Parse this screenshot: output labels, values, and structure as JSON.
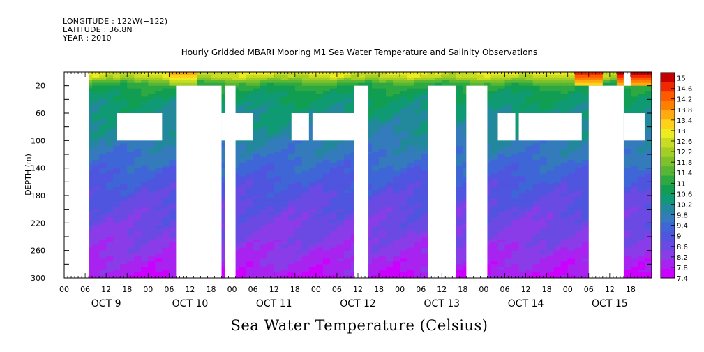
{
  "meta": {
    "longitude": "LONGITUDE : 122W(−122)",
    "latitude": "LATITUDE : 36.8N",
    "year": "YEAR : 2010"
  },
  "chart_data": {
    "type": "heatmap",
    "title": "Hourly Gridded MBARI Mooring M1 Sea Water Temperature and Salinity Observations",
    "xlabel": "Sea Water Temperature (Celsius)",
    "ylabel": "DEPTH (m)",
    "y_range": [
      0,
      300
    ],
    "y_reversed": true,
    "y_ticks": [
      20,
      60,
      100,
      140,
      180,
      220,
      260,
      300
    ],
    "x_range_hours": [
      0,
      168
    ],
    "x_hour_ticks": [
      "00",
      "06",
      "12",
      "18",
      "00",
      "06",
      "12",
      "18",
      "00",
      "06",
      "12",
      "18",
      "00",
      "06",
      "12",
      "18",
      "00",
      "06",
      "12",
      "18",
      "00",
      "06",
      "12",
      "18",
      "00",
      "06",
      "12",
      "18"
    ],
    "x_day_labels": [
      "OCT  9",
      "OCT 10",
      "OCT 11",
      "OCT 12",
      "OCT 13",
      "OCT 14",
      "OCT 15"
    ],
    "colorbar": {
      "levels": [
        "15",
        "14.6",
        "14.2",
        "13.8",
        "13.4",
        "13",
        "12.6",
        "12.2",
        "11.8",
        "11.4",
        "11",
        "10.6",
        "10.2",
        "9.8",
        "9.4",
        "9",
        "8.6",
        "8.2",
        "7.8",
        "7.4"
      ],
      "min": 7.4,
      "max": 15.2
    },
    "temperature_profile": {
      "depths_m": [
        0,
        8,
        14,
        20,
        35,
        60,
        90,
        120,
        160,
        200,
        240,
        270,
        290,
        300
      ],
      "values_c": [
        12.8,
        12.4,
        11.6,
        11.0,
        10.6,
        10.3,
        10.0,
        9.6,
        9.1,
        8.7,
        8.4,
        8.1,
        7.9,
        7.7
      ]
    },
    "surface_warm_spots_c": [
      {
        "hour_from": 30,
        "hour_to": 38,
        "value": 13.6
      },
      {
        "hour_from": 134,
        "hour_to": 140,
        "value": 13.0
      },
      {
        "hour_from": 146,
        "hour_to": 154,
        "value": 14.8
      },
      {
        "hour_from": 157,
        "hour_to": 168,
        "value": 15.0
      }
    ],
    "missing_data_blocks": [
      {
        "hour_from": 0,
        "hour_to": 7,
        "depth_from": 0,
        "depth_to": 300
      },
      {
        "hour_from": 32,
        "hour_to": 45,
        "depth_from": 20,
        "depth_to": 300
      },
      {
        "hour_from": 46,
        "hour_to": 49,
        "depth_from": 20,
        "depth_to": 300
      },
      {
        "hour_from": 150,
        "hour_to": 160,
        "depth_from": 20,
        "depth_to": 300
      },
      {
        "hour_from": 83,
        "hour_to": 87,
        "depth_from": 20,
        "depth_to": 300
      },
      {
        "hour_from": 104,
        "hour_to": 112,
        "depth_from": 20,
        "depth_to": 300
      },
      {
        "hour_from": 115,
        "hour_to": 121,
        "depth_from": 20,
        "depth_to": 300
      },
      {
        "hour_from": 160,
        "hour_to": 162,
        "depth_from": 0,
        "depth_to": 20
      },
      {
        "hour_from": 15,
        "hour_to": 28,
        "depth_from": 60,
        "depth_to": 100
      },
      {
        "hour_from": 45,
        "hour_to": 54,
        "depth_from": 60,
        "depth_to": 100
      },
      {
        "hour_from": 65,
        "hour_to": 70,
        "depth_from": 60,
        "depth_to": 100
      },
      {
        "hour_from": 71,
        "hour_to": 83,
        "depth_from": 60,
        "depth_to": 100
      },
      {
        "hour_from": 124,
        "hour_to": 129,
        "depth_from": 60,
        "depth_to": 100
      },
      {
        "hour_from": 130,
        "hour_to": 148,
        "depth_from": 60,
        "depth_to": 100
      },
      {
        "hour_from": 160,
        "hour_to": 166,
        "depth_from": 60,
        "depth_to": 100
      }
    ]
  }
}
